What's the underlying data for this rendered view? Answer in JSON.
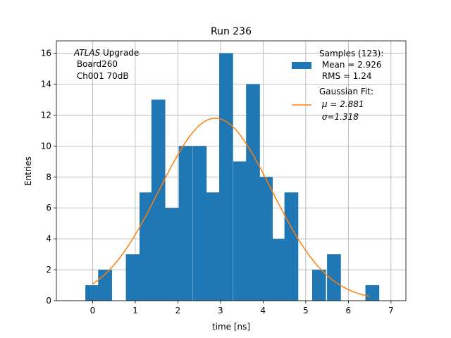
{
  "chart_data": {
    "type": "bar",
    "title": "Run 236",
    "xlabel": "time [ns]",
    "ylabel": "Entries",
    "xlim": [
      -0.85,
      7.35
    ],
    "ylim": [
      0,
      16.8
    ],
    "grid": true,
    "xticks": [
      0,
      1,
      2,
      3,
      4,
      5,
      6,
      7
    ],
    "yticks": [
      0,
      2,
      4,
      6,
      8,
      10,
      12,
      14,
      16
    ],
    "bin_width": 0.325,
    "bins": [
      {
        "left": -0.17,
        "value": 1
      },
      {
        "left": 0.13,
        "value": 2
      },
      {
        "left": 0.78,
        "value": 3
      },
      {
        "left": 1.1,
        "value": 7
      },
      {
        "left": 1.38,
        "value": 13
      },
      {
        "left": 1.7,
        "value": 6
      },
      {
        "left": 2.02,
        "value": 10
      },
      {
        "left": 2.35,
        "value": 10
      },
      {
        "left": 2.65,
        "value": 7
      },
      {
        "left": 2.97,
        "value": 16
      },
      {
        "left": 3.3,
        "value": 9
      },
      {
        "left": 3.6,
        "value": 14
      },
      {
        "left": 3.9,
        "value": 8
      },
      {
        "left": 4.2,
        "value": 4
      },
      {
        "left": 4.5,
        "value": 7
      },
      {
        "left": 5.15,
        "value": 2
      },
      {
        "left": 5.5,
        "value": 3
      },
      {
        "left": 6.4,
        "value": 1
      }
    ],
    "fit": {
      "name": "Gaussian Fit",
      "mu": 2.881,
      "sigma": 1.318,
      "amplitude": 11.8,
      "x_range": [
        0.0,
        6.5
      ]
    },
    "colors": {
      "bars": "#1f77b4",
      "fit": "#ff7f0e",
      "grid": "#b0b0b0"
    },
    "legend": {
      "position": "top-right",
      "samples_lines": [
        "Samples (123):",
        " Mean = 2.926",
        " RMS = 1.24"
      ],
      "fit_lines": [
        "Gaussian Fit:",
        " μ = 2.881",
        " σ=1.318"
      ]
    },
    "annotation": {
      "position": "top-left",
      "lines": [
        "ATLAS Upgrade",
        " Board260",
        " Ch001 70dB"
      ]
    }
  }
}
